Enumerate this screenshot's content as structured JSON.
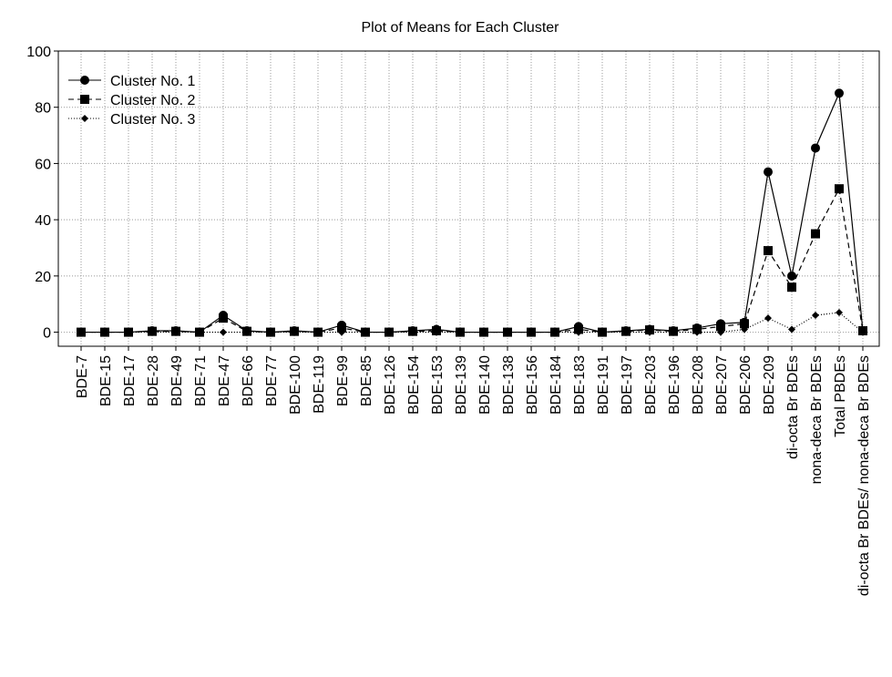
{
  "chart_data": {
    "type": "line",
    "title": "Plot of Means for Each Cluster",
    "categories": [
      "BDE-7",
      "BDE-15",
      "BDE-17",
      "BDE-28",
      "BDE-49",
      "BDE-71",
      "BDE-47",
      "BDE-66",
      "BDE-77",
      "BDE-100",
      "BDE-119",
      "BDE-99",
      "BDE-85",
      "BDE-126",
      "BDE-154",
      "BDE-153",
      "BDE-139",
      "BDE-140",
      "BDE-138",
      "BDE-156",
      "BDE-184",
      "BDE-183",
      "BDE-191",
      "BDE-197",
      "BDE-203",
      "BDE-196",
      "BDE-208",
      "BDE-207",
      "BDE-206",
      "BDE-209",
      "di-octa Br BDEs",
      "nona-deca Br BDEs",
      "Total PBDEs",
      "di-octa Br BDEs/ nona-deca Br BDEs"
    ],
    "series": [
      {
        "name": "Cluster No. 1",
        "color": "#000000",
        "dash": "solid",
        "marker": "circle",
        "values": [
          0,
          0,
          0,
          0.5,
          0.5,
          0,
          6,
          0.5,
          0,
          0.5,
          0,
          2.5,
          0,
          0,
          0.5,
          1,
          0,
          0,
          0,
          0,
          0,
          2,
          0,
          0.5,
          1,
          0.5,
          1.5,
          3,
          3.5,
          57,
          20,
          65.5,
          85,
          0.5
        ]
      },
      {
        "name": "Cluster No. 2",
        "color": "#000000",
        "dash": "dashed",
        "marker": "square",
        "values": [
          0,
          0,
          0,
          0.3,
          0.3,
          0,
          5,
          0.3,
          0,
          0.3,
          0,
          1.5,
          0,
          0,
          0.3,
          0.5,
          0,
          0,
          0,
          0,
          0,
          1,
          0,
          0.3,
          0.8,
          0.3,
          1,
          2,
          3,
          29,
          16,
          35,
          51,
          0.5
        ]
      },
      {
        "name": "Cluster No. 3",
        "color": "#000000",
        "dash": "dotted",
        "marker": "diamond",
        "values": [
          0,
          0,
          0,
          0,
          0,
          0,
          0,
          0,
          0,
          0,
          0,
          0,
          0,
          0,
          0,
          0,
          0,
          0,
          0,
          0,
          0,
          0,
          0,
          0,
          0,
          0,
          0,
          0,
          1,
          5,
          1,
          6,
          7,
          0
        ]
      }
    ],
    "ylim": [
      -5,
      100
    ],
    "yticks": [
      0,
      20,
      40,
      60,
      80,
      100
    ],
    "grid": true,
    "legend": "upper-left"
  }
}
